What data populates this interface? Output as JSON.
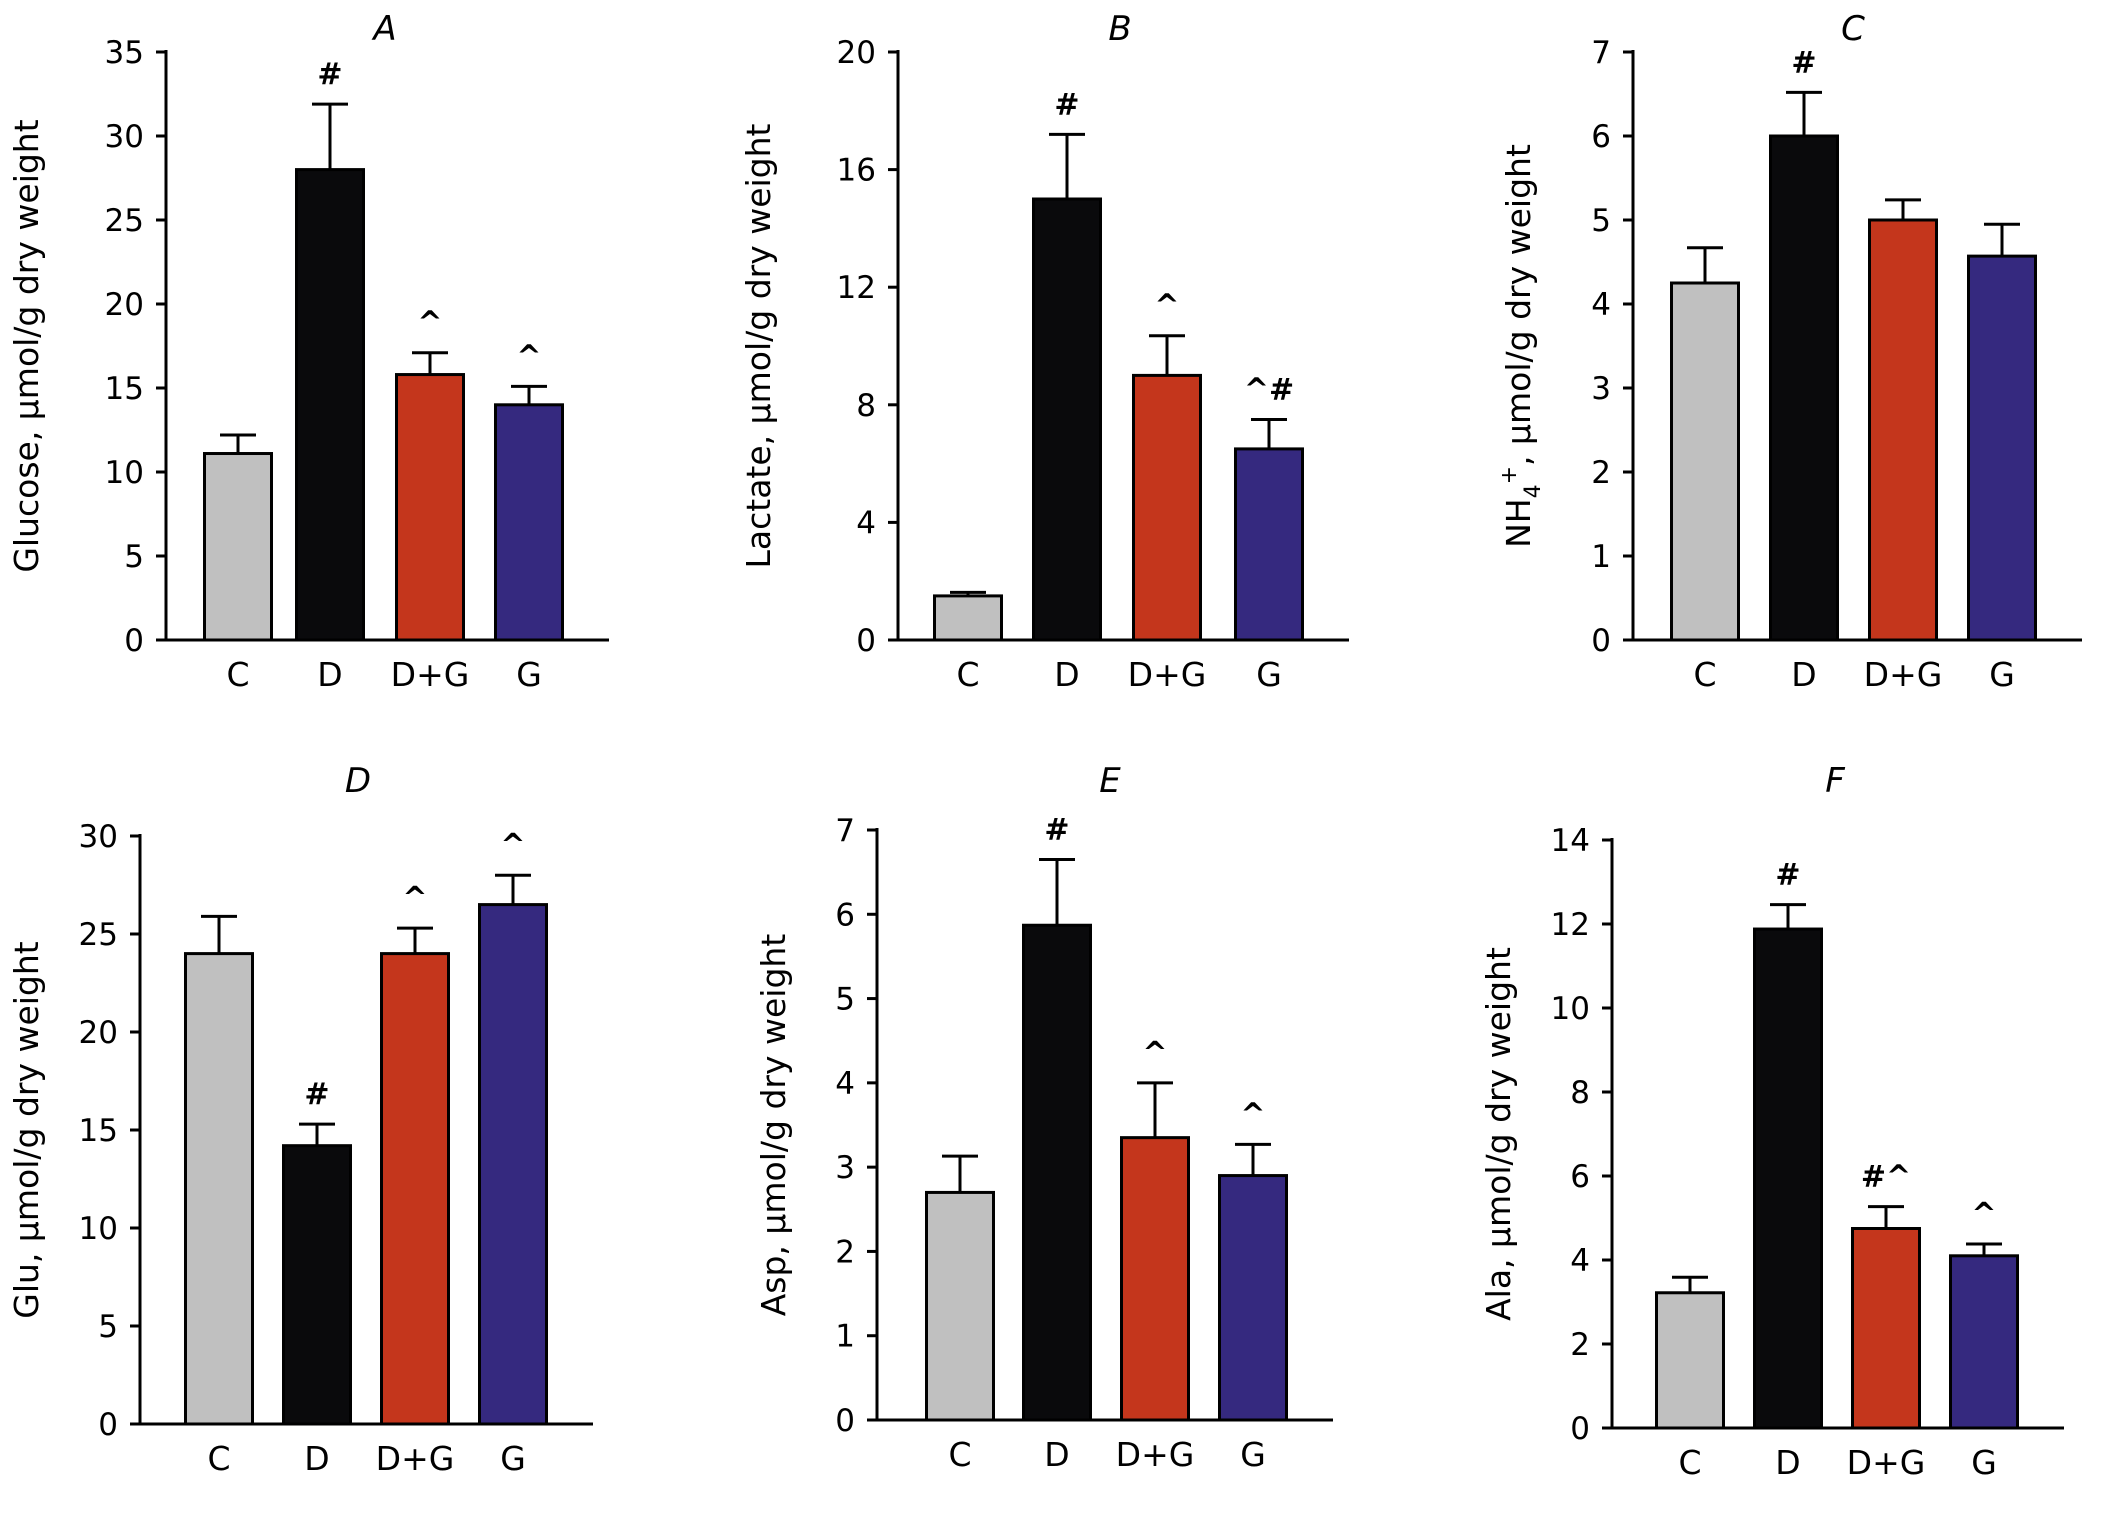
{
  "chart_data": [
    {
      "type": "bar",
      "title": "A",
      "ylabel": "Glucose, µmol/g dry weight",
      "ylim": [
        0,
        35
      ],
      "yticks": [
        0,
        5,
        10,
        15,
        20,
        25,
        30,
        35
      ],
      "categories": [
        "C",
        "D",
        "D+G",
        "G"
      ],
      "values": [
        11.1,
        28.0,
        15.8,
        14.0
      ],
      "errors": [
        1.1,
        3.9,
        1.3,
        1.1
      ],
      "annotations": [
        "",
        "#",
        "^",
        "^"
      ],
      "colors": [
        "#c0c0c0",
        "#0a0a0c",
        "#c4361c",
        "#35297f"
      ]
    },
    {
      "type": "bar",
      "title": "B",
      "ylabel": "Lactate, µmol/g dry weight",
      "ylim": [
        0,
        20
      ],
      "yticks": [
        0,
        4,
        8,
        12,
        16,
        20
      ],
      "categories": [
        "C",
        "D",
        "D+G",
        "G"
      ],
      "values": [
        1.5,
        15.0,
        9.0,
        6.5
      ],
      "errors": [
        0.12,
        2.2,
        1.35,
        1.0
      ],
      "annotations": [
        "",
        "#",
        "^",
        "^#"
      ],
      "colors": [
        "#c0c0c0",
        "#0a0a0c",
        "#c4361c",
        "#35297f"
      ]
    },
    {
      "type": "bar",
      "title": "C",
      "ylabel_main": "NH",
      "ylabel_sub": "4",
      "ylabel_sup": "+",
      "ylabel_rest": ", µmol/g dry weight",
      "ylim": [
        0,
        7
      ],
      "yticks": [
        0,
        1,
        2,
        3,
        4,
        5,
        6,
        7
      ],
      "categories": [
        "C",
        "D",
        "D+G",
        "G"
      ],
      "values": [
        4.25,
        6.0,
        5.0,
        4.57
      ],
      "errors": [
        0.42,
        0.52,
        0.24,
        0.38
      ],
      "annotations": [
        "",
        "#",
        "",
        ""
      ],
      "colors": [
        "#c0c0c0",
        "#0a0a0c",
        "#c4361c",
        "#35297f"
      ]
    },
    {
      "type": "bar",
      "title": "D",
      "ylabel": "Glu, µmol/g dry weight",
      "ylim": [
        0,
        30
      ],
      "yticks": [
        0,
        5,
        10,
        15,
        20,
        25,
        30
      ],
      "categories": [
        "C",
        "D",
        "D+G",
        "G"
      ],
      "values": [
        24.0,
        14.2,
        24.0,
        26.5
      ],
      "errors": [
        1.9,
        1.1,
        1.3,
        1.5
      ],
      "annotations": [
        "",
        "#",
        "^",
        "^"
      ],
      "colors": [
        "#c0c0c0",
        "#0a0a0c",
        "#c4361c",
        "#35297f"
      ]
    },
    {
      "type": "bar",
      "title": "E",
      "ylabel": "Asp, µmol/g dry weight",
      "ylim": [
        0,
        7
      ],
      "yticks": [
        0,
        1,
        2,
        3,
        4,
        5,
        6,
        7
      ],
      "categories": [
        "C",
        "D",
        "D+G",
        "G"
      ],
      "values": [
        2.7,
        5.87,
        3.35,
        2.9
      ],
      "errors": [
        0.43,
        0.78,
        0.65,
        0.37
      ],
      "annotations": [
        "",
        "#",
        "^",
        "^"
      ],
      "colors": [
        "#c0c0c0",
        "#0a0a0c",
        "#c4361c",
        "#35297f"
      ]
    },
    {
      "type": "bar",
      "title": "F",
      "ylabel": "Ala, µmol/g dry weight",
      "ylim": [
        0,
        14
      ],
      "yticks": [
        0,
        2,
        4,
        6,
        8,
        10,
        12,
        14
      ],
      "categories": [
        "C",
        "D",
        "D+G",
        "G"
      ],
      "values": [
        3.22,
        11.88,
        4.75,
        4.1
      ],
      "errors": [
        0.37,
        0.58,
        0.52,
        0.28
      ],
      "annotations": [
        "",
        "#",
        "#^",
        "^"
      ],
      "colors": [
        "#c0c0c0",
        "#0a0a0c",
        "#c4361c",
        "#35297f"
      ]
    }
  ]
}
